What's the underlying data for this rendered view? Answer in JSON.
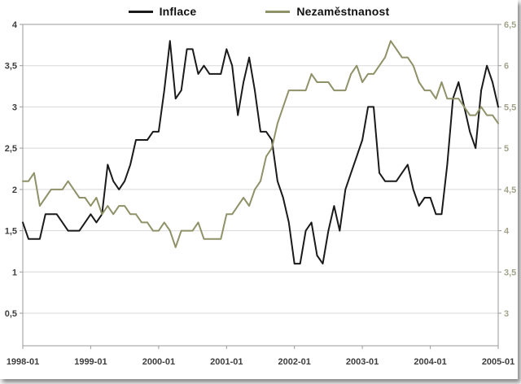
{
  "legend": {
    "inflace": "Inflace",
    "nezamestnanost": "Nezaměstnanost"
  },
  "colors": {
    "inflace": "#1a1a1a",
    "nezamestnanost": "#8f9168",
    "grid": "#d8d8d8",
    "axis": "#9a9a9a",
    "left_tick_text": "#3d3d3d",
    "right_tick_text": "#a3a38c",
    "x_tick_text": "#3d3d3d",
    "background": "#ffffff"
  },
  "chart_data": {
    "type": "line",
    "grid": true,
    "legend_position": "top",
    "x": [
      "1998-01",
      "1998-02",
      "1998-03",
      "1998-04",
      "1998-05",
      "1998-06",
      "1998-07",
      "1998-08",
      "1998-09",
      "1998-10",
      "1998-11",
      "1998-12",
      "1999-01",
      "1999-02",
      "1999-03",
      "1999-04",
      "1999-05",
      "1999-06",
      "1999-07",
      "1999-08",
      "1999-09",
      "1999-10",
      "1999-11",
      "1999-12",
      "2000-01",
      "2000-02",
      "2000-03",
      "2000-04",
      "2000-05",
      "2000-06",
      "2000-07",
      "2000-08",
      "2000-09",
      "2000-10",
      "2000-11",
      "2000-12",
      "2001-01",
      "2001-02",
      "2001-03",
      "2001-04",
      "2001-05",
      "2001-06",
      "2001-07",
      "2001-08",
      "2001-09",
      "2001-10",
      "2001-11",
      "2001-12",
      "2002-01",
      "2002-02",
      "2002-03",
      "2002-04",
      "2002-05",
      "2002-06",
      "2002-07",
      "2002-08",
      "2002-09",
      "2002-10",
      "2002-11",
      "2002-12",
      "2003-01",
      "2003-02",
      "2003-03",
      "2003-04",
      "2003-05",
      "2003-06",
      "2003-07",
      "2003-08",
      "2003-09",
      "2003-10",
      "2003-11",
      "2003-12",
      "2004-01",
      "2004-02",
      "2004-03",
      "2004-04",
      "2004-05",
      "2004-06",
      "2004-07",
      "2004-08",
      "2004-09",
      "2004-10",
      "2004-11",
      "2004-12",
      "2005-01"
    ],
    "x_ticks": [
      "1998-01",
      "1999-01",
      "2000-01",
      "2001-01",
      "2002-01",
      "2003-01",
      "2004-01",
      "2005-01"
    ],
    "left_axis": {
      "min": 0.5,
      "max": 4,
      "ticks": [
        "0,5",
        "1",
        "1,5",
        "2",
        "2,5",
        "3",
        "3,5",
        "4"
      ]
    },
    "right_axis": {
      "min": 3,
      "max": 6.5,
      "ticks": [
        "3",
        "3,5",
        "4",
        "4,5",
        "5",
        "5,5",
        "6",
        "6,5"
      ]
    },
    "series": [
      {
        "name": "Inflace",
        "axis": "left",
        "color": "#1a1a1a",
        "values": [
          1.6,
          1.4,
          1.4,
          1.4,
          1.7,
          1.7,
          1.7,
          1.6,
          1.5,
          1.5,
          1.5,
          1.6,
          1.7,
          1.6,
          1.7,
          2.3,
          2.1,
          2.0,
          2.1,
          2.3,
          2.6,
          2.6,
          2.6,
          2.7,
          2.7,
          3.2,
          3.8,
          3.1,
          3.2,
          3.7,
          3.7,
          3.4,
          3.5,
          3.4,
          3.4,
          3.4,
          3.7,
          3.5,
          2.9,
          3.3,
          3.6,
          3.2,
          2.7,
          2.7,
          2.6,
          2.1,
          1.9,
          1.6,
          1.1,
          1.1,
          1.5,
          1.6,
          1.2,
          1.1,
          1.5,
          1.8,
          1.5,
          2.0,
          2.2,
          2.4,
          2.6,
          3.0,
          3.0,
          2.2,
          2.1,
          2.1,
          2.1,
          2.2,
          2.3,
          2.0,
          1.8,
          1.9,
          1.9,
          1.7,
          1.7,
          2.3,
          3.1,
          3.3,
          3.0,
          2.7,
          2.5,
          3.2,
          3.5,
          3.3,
          3.0
        ]
      },
      {
        "name": "Nezaměstnanost",
        "axis": "right",
        "color": "#8f9168",
        "values": [
          4.6,
          4.6,
          4.7,
          4.3,
          4.4,
          4.5,
          4.5,
          4.5,
          4.6,
          4.5,
          4.4,
          4.4,
          4.3,
          4.4,
          4.2,
          4.3,
          4.2,
          4.3,
          4.3,
          4.2,
          4.2,
          4.1,
          4.1,
          4.0,
          4.0,
          4.1,
          4.0,
          3.8,
          4.0,
          4.0,
          4.0,
          4.1,
          3.9,
          3.9,
          3.9,
          3.9,
          4.2,
          4.2,
          4.3,
          4.4,
          4.3,
          4.5,
          4.6,
          4.9,
          5.0,
          5.3,
          5.5,
          5.7,
          5.7,
          5.7,
          5.7,
          5.9,
          5.8,
          5.8,
          5.8,
          5.7,
          5.7,
          5.7,
          5.9,
          6.0,
          5.8,
          5.9,
          5.9,
          6.0,
          6.1,
          6.3,
          6.2,
          6.1,
          6.1,
          6.0,
          5.8,
          5.7,
          5.7,
          5.6,
          5.8,
          5.6,
          5.6,
          5.6,
          5.5,
          5.4,
          5.4,
          5.5,
          5.4,
          5.4,
          5.3
        ]
      }
    ]
  }
}
